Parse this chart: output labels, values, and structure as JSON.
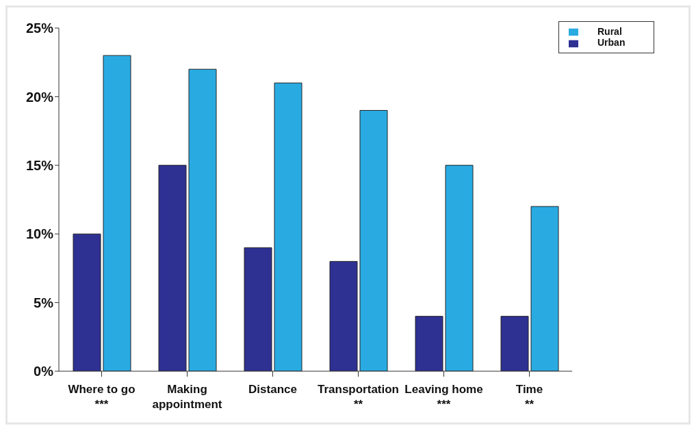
{
  "chart_data": {
    "type": "bar",
    "categories": [
      "Where to go\n***",
      "Making\nappointment",
      "Distance",
      "Transportation\n**",
      "Leaving home\n***",
      "Time\n**"
    ],
    "series": [
      {
        "name": "Urban",
        "color": "#2e3192",
        "values": [
          10,
          15,
          9,
          8,
          4,
          4
        ]
      },
      {
        "name": "Rural",
        "color": "#29abe2",
        "values": [
          23,
          22,
          21,
          19,
          15,
          12
        ]
      }
    ],
    "ylim": [
      0,
      25
    ],
    "yticks": [
      {
        "value": 0,
        "label": "0%"
      },
      {
        "value": 5,
        "label": "5%"
      },
      {
        "value": 10,
        "label": "10%"
      },
      {
        "value": 15,
        "label": "15%"
      },
      {
        "value": 20,
        "label": "20%"
      },
      {
        "value": 25,
        "label": "25%"
      }
    ],
    "grid": false,
    "legend": "top right"
  }
}
